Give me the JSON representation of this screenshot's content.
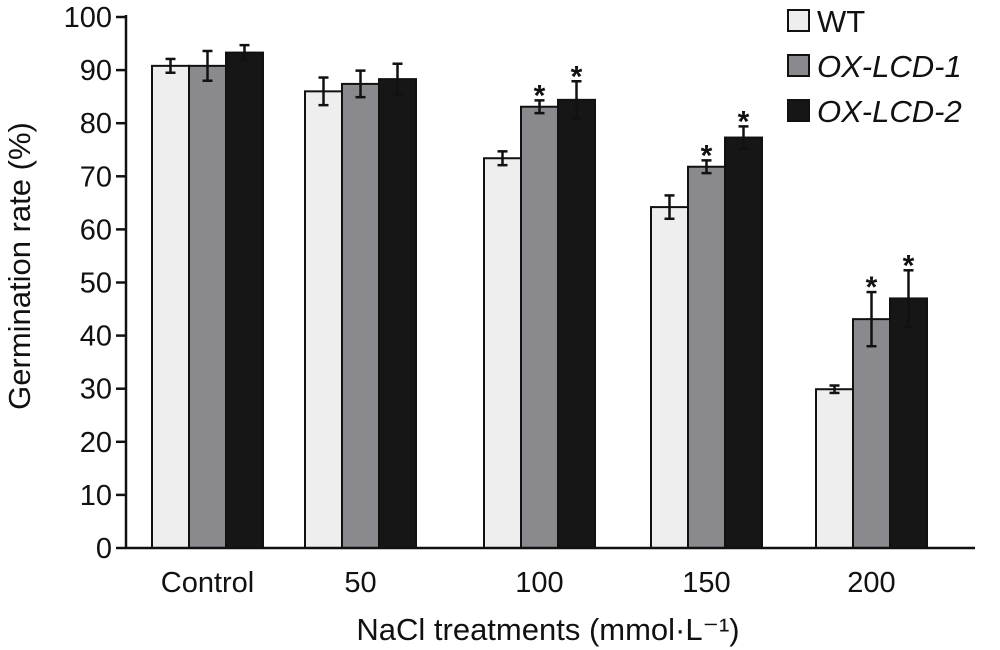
{
  "chart_data": {
    "type": "bar",
    "title": "",
    "xlabel": "NaCl treatments (mmol·L⁻¹)",
    "ylabel": "Germination rate (%)",
    "ylim": [
      0,
      100
    ],
    "yticks": [
      "0",
      "10",
      "20",
      "30",
      "40",
      "50",
      "60",
      "70",
      "80",
      "90",
      "100"
    ],
    "categories": [
      "Control",
      "50",
      "100",
      "150",
      "200"
    ],
    "legend_position": "top-right",
    "grid": false,
    "series": [
      {
        "name": "WT",
        "italic": false,
        "color": "#eeeeee",
        "values": [
          90.8,
          86.0,
          73.4,
          64.2,
          29.9
        ],
        "errors": [
          1.3,
          2.6,
          1.3,
          2.2,
          0.7
        ],
        "significant": [
          false,
          false,
          false,
          false,
          false
        ]
      },
      {
        "name": "OX-LCD-1",
        "italic": true,
        "color": "#8a898e",
        "values": [
          90.8,
          87.4,
          83.1,
          71.8,
          43.1
        ],
        "errors": [
          2.8,
          2.5,
          1.2,
          1.2,
          5.1
        ],
        "significant": [
          false,
          false,
          true,
          true,
          true
        ]
      },
      {
        "name": "OX-LCD-2",
        "italic": true,
        "color": "#161616",
        "values": [
          93.3,
          88.3,
          84.4,
          77.3,
          47.0
        ],
        "errors": [
          1.4,
          2.9,
          3.5,
          2.1,
          5.3
        ],
        "significant": [
          false,
          false,
          true,
          true,
          true
        ]
      }
    ],
    "significance_marker": "*"
  }
}
